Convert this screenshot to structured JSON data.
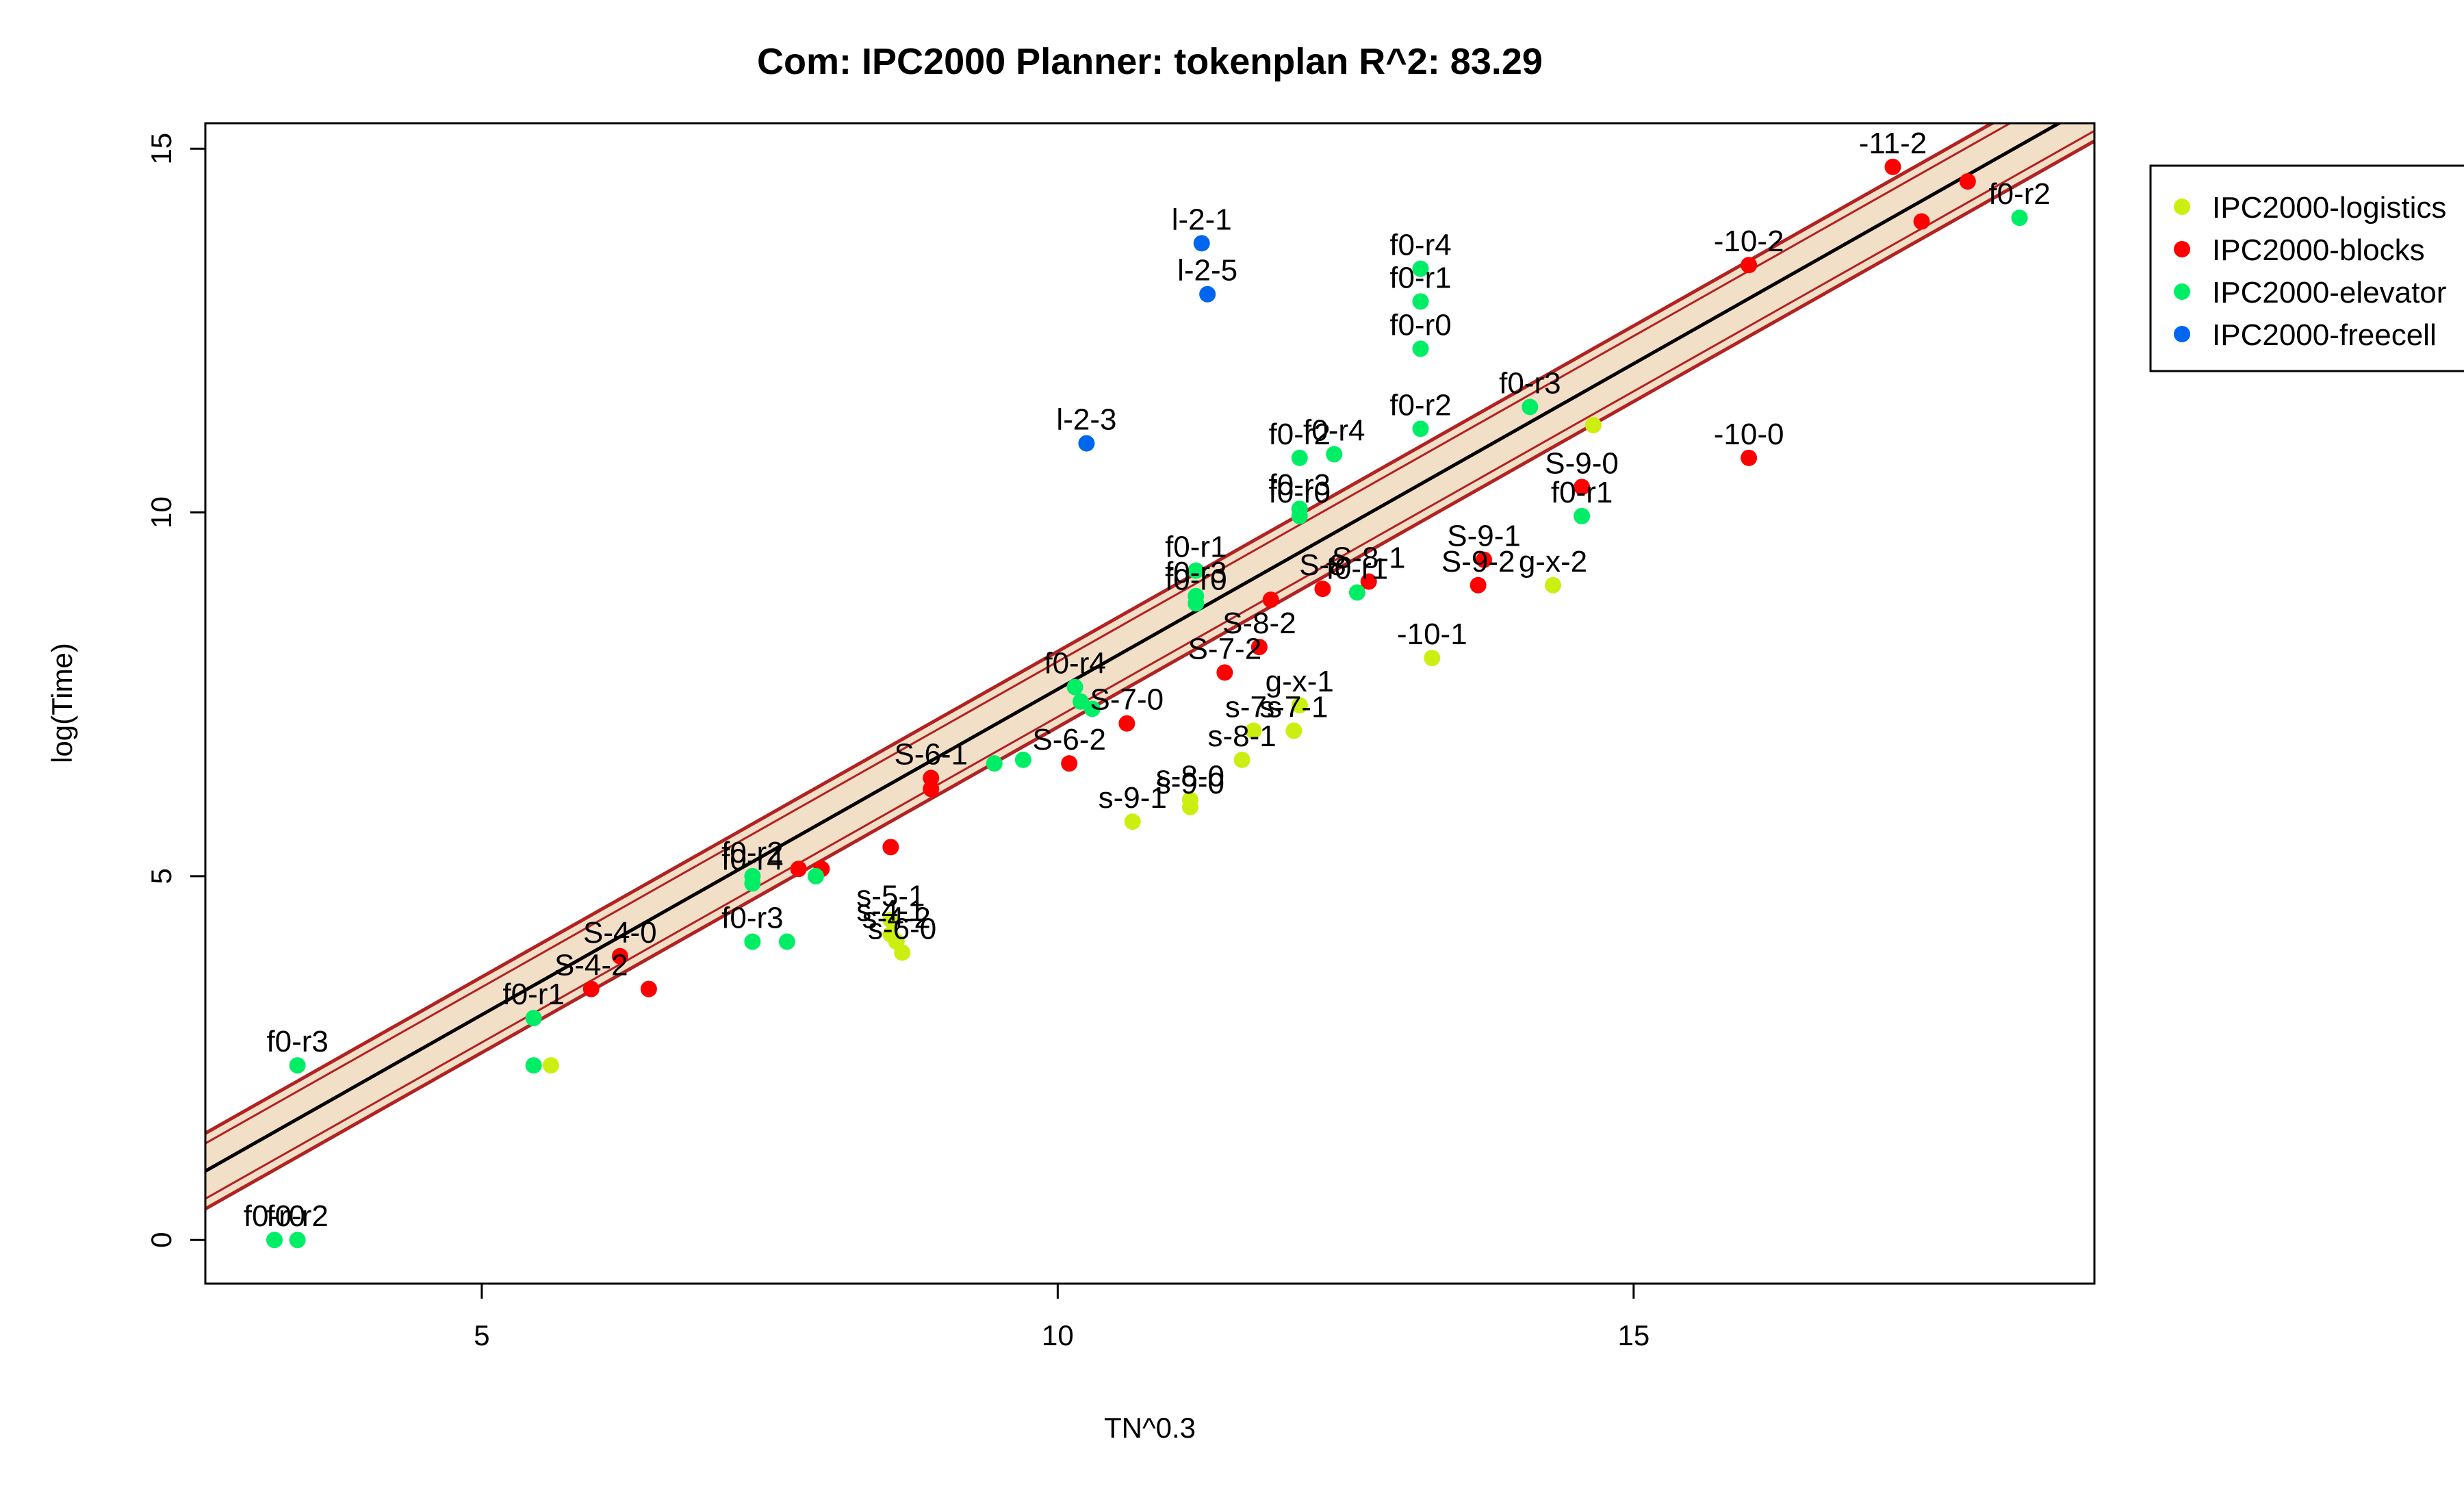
{
  "chart_data": {
    "type": "scatter",
    "title": "Com: IPC2000 Planner: tokenplan R^2: 83.29",
    "xlabel": "TN^0.3",
    "ylabel": "log(Time)",
    "xlim": [
      2.6,
      19.0
    ],
    "ylim": [
      -0.6,
      15.35
    ],
    "x_ticks": [
      5,
      10,
      15
    ],
    "y_ticks": [
      0,
      5,
      10,
      15
    ],
    "grid": false,
    "legend_position": "top-right",
    "fit": {
      "intercept": -1.38,
      "slope": 0.895,
      "inner_band": 0.38,
      "outer_band": 0.52,
      "line_color": "#000000",
      "band_border_color": "#b22222",
      "band_fill_color": "#f2dfc8"
    },
    "series": [
      {
        "name": "IPC2000-logistics",
        "color": "#ccee11",
        "points": [
          {
            "x": 5.6,
            "y": 2.4,
            "label": ""
          },
          {
            "x": 8.65,
            "y": 3.95,
            "label": "s-6-0"
          },
          {
            "x": 8.6,
            "y": 4.1,
            "label": "s-4-2"
          },
          {
            "x": 8.55,
            "y": 4.2,
            "label": "s-4-1"
          },
          {
            "x": 8.55,
            "y": 4.4,
            "label": "s-5-1"
          },
          {
            "x": 10.65,
            "y": 5.75,
            "label": "s-9-1"
          },
          {
            "x": 11.15,
            "y": 5.95,
            "label": "s-9-0"
          },
          {
            "x": 11.15,
            "y": 6.05,
            "label": "s-8-0"
          },
          {
            "x": 11.6,
            "y": 6.6,
            "label": "s-8-1"
          },
          {
            "x": 12.05,
            "y": 7.0,
            "label": "s-7-1"
          },
          {
            "x": 11.7,
            "y": 7.0,
            "label": "s-7s"
          },
          {
            "x": 12.1,
            "y": 7.35,
            "label": "g-x-1"
          },
          {
            "x": 13.25,
            "y": 8.0,
            "label": "-10-1"
          },
          {
            "x": 14.3,
            "y": 9.0,
            "label": "g-x-2"
          },
          {
            "x": 14.65,
            "y": 11.2,
            "label": ""
          }
        ]
      },
      {
        "name": "IPC2000-blocks",
        "color": "#ff0000",
        "points": [
          {
            "x": 5.95,
            "y": 3.45,
            "label": "S-4-2"
          },
          {
            "x": 6.2,
            "y": 3.9,
            "label": "S-4-0"
          },
          {
            "x": 6.45,
            "y": 3.45,
            "label": ""
          },
          {
            "x": 7.75,
            "y": 5.1,
            "label": ""
          },
          {
            "x": 7.95,
            "y": 5.1,
            "label": ""
          },
          {
            "x": 8.55,
            "y": 5.4,
            "label": ""
          },
          {
            "x": 8.9,
            "y": 6.35,
            "label": "S-6-1"
          },
          {
            "x": 8.9,
            "y": 6.2,
            "label": ""
          },
          {
            "x": 10.1,
            "y": 6.55,
            "label": "S-6-2"
          },
          {
            "x": 10.6,
            "y": 7.1,
            "label": "S-7-0"
          },
          {
            "x": 11.45,
            "y": 7.8,
            "label": "S-7-2"
          },
          {
            "x": 11.75,
            "y": 8.15,
            "label": "S-8-2"
          },
          {
            "x": 11.85,
            "y": 8.8,
            "label": ""
          },
          {
            "x": 12.3,
            "y": 8.95,
            "label": "S-8"
          },
          {
            "x": 12.7,
            "y": 9.05,
            "label": "S-8-1"
          },
          {
            "x": 13.65,
            "y": 9.0,
            "label": "S-9-2"
          },
          {
            "x": 13.7,
            "y": 9.35,
            "label": "S-9-1"
          },
          {
            "x": 14.55,
            "y": 10.35,
            "label": "S-9-0"
          },
          {
            "x": 16.0,
            "y": 10.75,
            "label": "-10-0"
          },
          {
            "x": 16.0,
            "y": 13.4,
            "label": "-10-2"
          },
          {
            "x": 17.25,
            "y": 14.75,
            "label": "-11-2"
          },
          {
            "x": 17.5,
            "y": 14.0,
            "label": ""
          },
          {
            "x": 17.9,
            "y": 14.55,
            "label": ""
          }
        ]
      },
      {
        "name": "IPC2000-elevator",
        "color": "#00ee66",
        "points": [
          {
            "x": 3.2,
            "y": 0.0,
            "label": "f0-r0"
          },
          {
            "x": 3.4,
            "y": 0.0,
            "label": "f0-r2"
          },
          {
            "x": 3.4,
            "y": 2.4,
            "label": "f0-r3"
          },
          {
            "x": 5.45,
            "y": 2.4,
            "label": ""
          },
          {
            "x": 5.45,
            "y": 3.05,
            "label": "f0-r1"
          },
          {
            "x": 7.35,
            "y": 4.1,
            "label": "f0-r3"
          },
          {
            "x": 7.65,
            "y": 4.1,
            "label": ""
          },
          {
            "x": 7.35,
            "y": 4.9,
            "label": "f0-r4"
          },
          {
            "x": 7.35,
            "y": 5.0,
            "label": "f0-r2"
          },
          {
            "x": 7.9,
            "y": 5.0,
            "label": ""
          },
          {
            "x": 9.45,
            "y": 6.55,
            "label": ""
          },
          {
            "x": 9.7,
            "y": 6.6,
            "label": ""
          },
          {
            "x": 10.15,
            "y": 7.6,
            "label": "f0-r4"
          },
          {
            "x": 10.2,
            "y": 7.4,
            "label": ""
          },
          {
            "x": 10.3,
            "y": 7.3,
            "label": ""
          },
          {
            "x": 11.2,
            "y": 8.75,
            "label": "f0-r0"
          },
          {
            "x": 11.2,
            "y": 8.85,
            "label": "f0-r3"
          },
          {
            "x": 11.2,
            "y": 9.2,
            "label": "f0-r1"
          },
          {
            "x": 12.1,
            "y": 9.95,
            "label": "f0-r0"
          },
          {
            "x": 12.1,
            "y": 10.05,
            "label": "f0-r3"
          },
          {
            "x": 12.1,
            "y": 10.75,
            "label": "f0-r2"
          },
          {
            "x": 12.4,
            "y": 10.8,
            "label": "f0-r4"
          },
          {
            "x": 12.6,
            "y": 8.9,
            "label": "f0-r1"
          },
          {
            "x": 13.15,
            "y": 11.15,
            "label": "f0-r2"
          },
          {
            "x": 13.15,
            "y": 12.25,
            "label": "f0-r0"
          },
          {
            "x": 13.15,
            "y": 12.9,
            "label": "f0-r1"
          },
          {
            "x": 13.15,
            "y": 13.35,
            "label": "f0-r4"
          },
          {
            "x": 14.1,
            "y": 11.45,
            "label": "f0-r3"
          },
          {
            "x": 14.55,
            "y": 9.95,
            "label": "f0-r1"
          },
          {
            "x": 18.35,
            "y": 14.05,
            "label": "f0-r2"
          }
        ]
      },
      {
        "name": "IPC2000-freecell",
        "color": "#0066ee",
        "points": [
          {
            "x": 10.25,
            "y": 10.95,
            "label": "l-2-3"
          },
          {
            "x": 11.25,
            "y": 13.7,
            "label": "l-2-1"
          },
          {
            "x": 11.3,
            "y": 13.0,
            "label": "l-2-5"
          }
        ]
      }
    ]
  }
}
